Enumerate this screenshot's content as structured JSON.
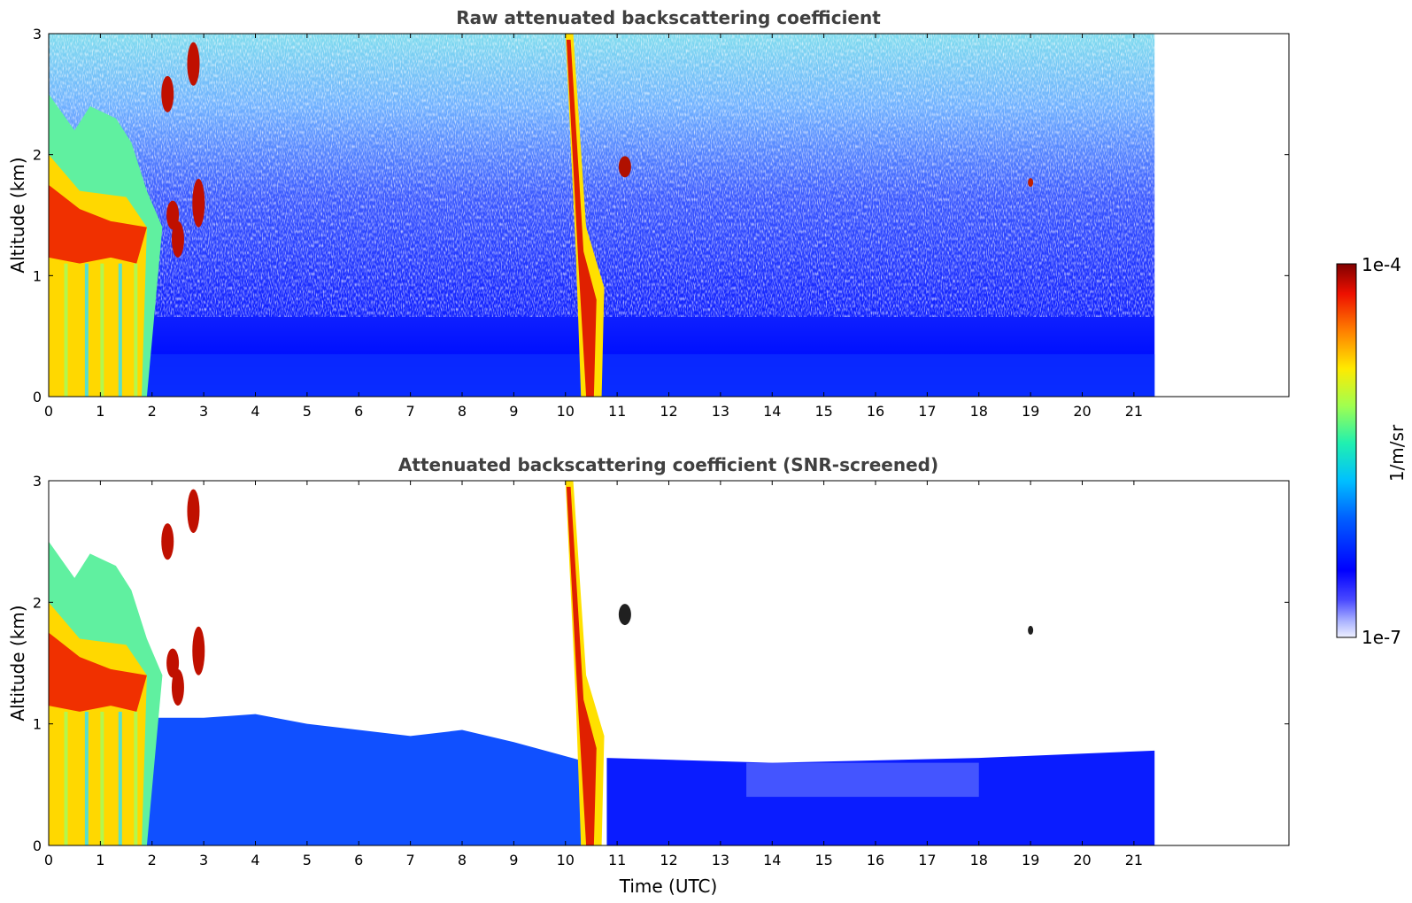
{
  "chart_data": [
    {
      "type": "heatmap",
      "title": "Raw attenuated backscattering coefficient",
      "xlabel": "",
      "ylabel": "Altitude (km)",
      "xlim": [
        0,
        24
      ],
      "ylim": [
        0,
        3
      ],
      "xticks": [
        0,
        1,
        2,
        3,
        4,
        5,
        6,
        7,
        8,
        9,
        10,
        11,
        12,
        13,
        14,
        15,
        16,
        17,
        18,
        19,
        20,
        21
      ],
      "yticks": [
        0,
        1,
        2,
        3
      ],
      "data_extent_hours": [
        0,
        21.4
      ],
      "features": [
        {
          "kind": "boundary_layer_aerosol",
          "time": [
            1.9,
            21.4
          ],
          "top_km": 0.5,
          "value": "~1e-6 1/m/sr"
        },
        {
          "kind": "dense_cloud",
          "time": [
            0,
            1.9
          ],
          "altitude_km": [
            1.1,
            1.6
          ],
          "value": "~1e-4 1/m/sr"
        },
        {
          "kind": "cloud_fragments",
          "time": [
            2.1,
            3.0
          ],
          "altitude_km": [
            1.2,
            2.8
          ]
        },
        {
          "kind": "precipitation_column",
          "time": [
            10.0,
            10.7
          ],
          "altitude_km": [
            0,
            3.0
          ],
          "value": "~1e-4 1/m/sr"
        },
        {
          "kind": "cloud_patch",
          "time": [
            11.0,
            11.3
          ],
          "altitude_km": [
            1.8,
            2.0
          ]
        },
        {
          "kind": "cloud_patch",
          "time": [
            18.9,
            19.1
          ],
          "altitude_km": [
            1.75,
            1.8
          ]
        }
      ]
    },
    {
      "type": "heatmap",
      "title": "Attenuated backscattering coefficient (SNR-screened)",
      "xlabel": "Time (UTC)",
      "ylabel": "Altitude (km)",
      "xlim": [
        0,
        24
      ],
      "ylim": [
        0,
        3
      ],
      "xticks": [
        0,
        1,
        2,
        3,
        4,
        5,
        6,
        7,
        8,
        9,
        10,
        11,
        12,
        13,
        14,
        15,
        16,
        17,
        18,
        19,
        20,
        21
      ],
      "yticks": [
        0,
        1,
        2,
        3
      ],
      "data_extent_hours": [
        0,
        21.4
      ],
      "features": [
        {
          "kind": "boundary_layer_aerosol",
          "time": [
            1.9,
            10.3
          ],
          "top_km": [
            1.05,
            0.75
          ]
        },
        {
          "kind": "boundary_layer_aerosol",
          "time": [
            10.8,
            21.4
          ],
          "top_km": 0.7
        },
        {
          "kind": "dense_cloud",
          "time": [
            0,
            1.9
          ],
          "altitude_km": [
            1.1,
            1.6
          ]
        },
        {
          "kind": "precipitation_column",
          "time": [
            10.0,
            10.7
          ],
          "altitude_km": [
            0,
            3.0
          ]
        },
        {
          "kind": "cloud_patch",
          "time": [
            11.0,
            11.3
          ],
          "altitude_km": [
            1.8,
            2.0
          ]
        },
        {
          "kind": "cloud_patch",
          "time": [
            18.9,
            19.1
          ],
          "altitude_km": [
            1.75,
            1.8
          ]
        }
      ]
    }
  ],
  "colorbar": {
    "label": "1/m/sr",
    "max_label": "1e-4",
    "min_label": "1e-7",
    "scale": "log",
    "range": [
      1e-07,
      0.0001
    ],
    "colormap": "jet"
  }
}
